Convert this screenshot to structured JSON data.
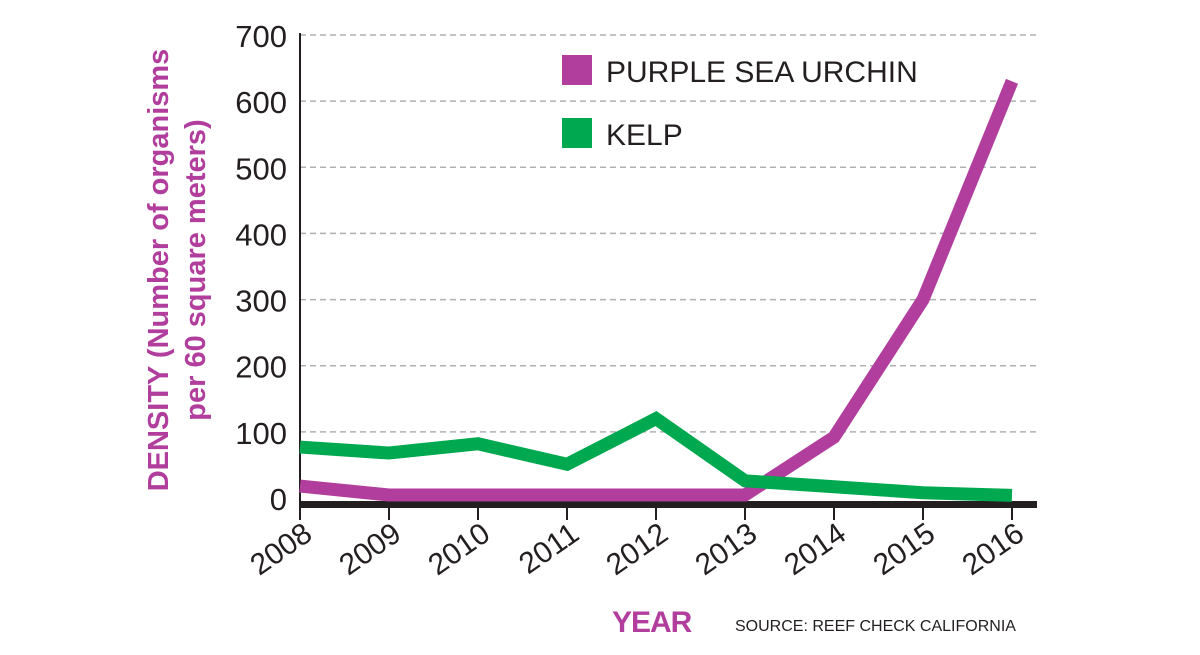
{
  "chart_data": {
    "type": "line",
    "title": "",
    "xlabel": "YEAR",
    "ylabel_line1": "DENSITY (Number of organisms",
    "ylabel_line2": "per 60 square meters)",
    "source": "SOURCE: REEF CHECK CALIFORNIA",
    "x": [
      "2008",
      "2009",
      "2010",
      "2011",
      "2012",
      "2013",
      "2014",
      "2015",
      "2016"
    ],
    "yticks": [
      0,
      100,
      200,
      300,
      400,
      500,
      600,
      700
    ],
    "ylim": [
      0,
      700
    ],
    "grid": true,
    "legend_position": "top-center",
    "series": [
      {
        "name": "PURPLE SEA URCHIN",
        "color": "#b13e9c",
        "values": [
          18,
          0,
          0,
          0,
          0,
          0,
          92,
          300,
          630
        ]
      },
      {
        "name": "KELP",
        "color": "#00a94f",
        "values": [
          77,
          68,
          82,
          51,
          120,
          26,
          17,
          8,
          4
        ]
      }
    ],
    "colors": {
      "label": "#b13e9c",
      "axis": "#231f20",
      "grid": "#b0b0b0"
    }
  }
}
